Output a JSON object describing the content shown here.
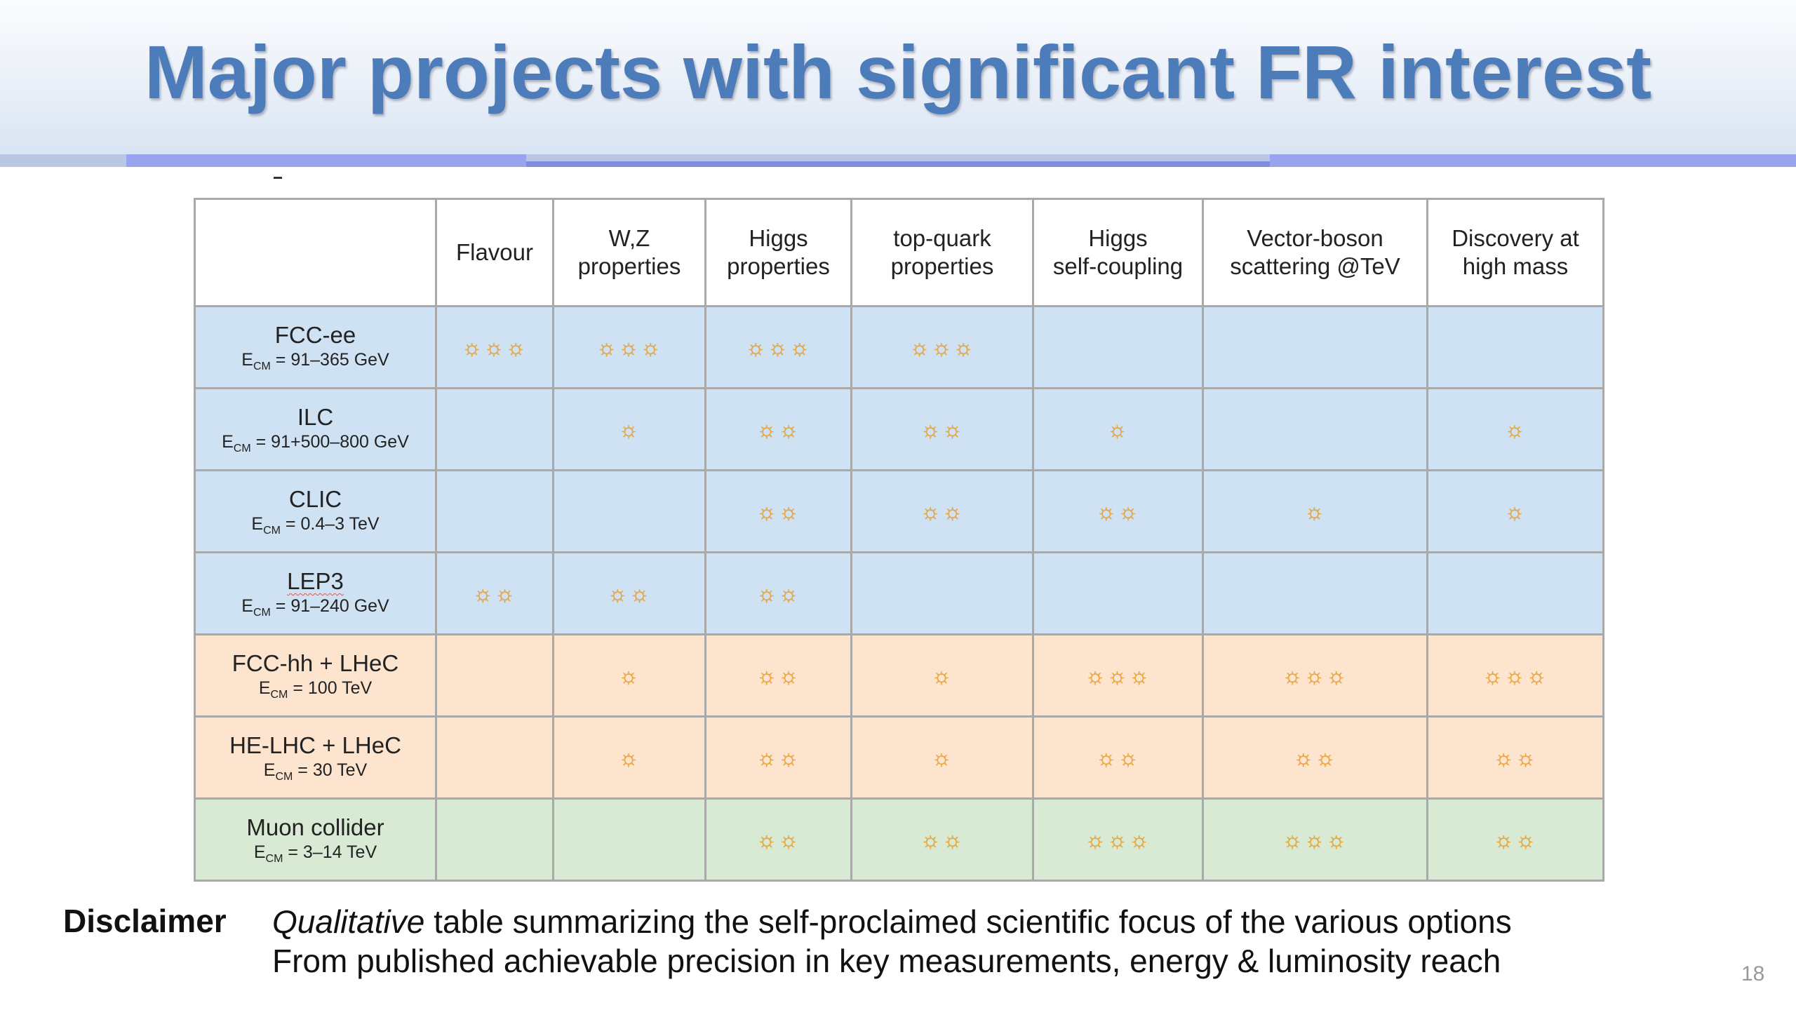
{
  "slide": {
    "title": "Major projects with significant FR interest",
    "page_number": "18"
  },
  "table": {
    "corner": "",
    "columns": [
      [
        "Flavour"
      ],
      [
        "W,Z",
        "properties"
      ],
      [
        "Higgs",
        "properties"
      ],
      [
        "top-quark",
        "properties"
      ],
      [
        "Higgs",
        "self-coupling"
      ],
      [
        "Vector-boson",
        "scattering @TeV"
      ],
      [
        "Discovery at",
        "high mass"
      ]
    ],
    "rows": [
      {
        "name": "FCC-ee",
        "energy_prefix": "E",
        "energy_sub": "CM",
        "energy_value": "= 91–365 GeV",
        "group": "blue",
        "cells": [
          "☼☼☼",
          "☼☼☼",
          "☼☼☼",
          "☼☼☼",
          "",
          "",
          ""
        ]
      },
      {
        "name": "ILC",
        "energy_prefix": "E",
        "energy_sub": "CM",
        "energy_value": "= 91+500–800 GeV",
        "group": "blue",
        "cells": [
          "",
          "☼",
          "☼☼",
          "☼☼",
          "☼",
          "",
          "☼"
        ]
      },
      {
        "name": "CLIC",
        "energy_prefix": "E",
        "energy_sub": "CM",
        "energy_value": "= 0.4–3 TeV",
        "group": "blue",
        "cells": [
          "",
          "",
          "☼☼",
          "☼☼",
          "☼☼",
          "☼",
          "☼"
        ]
      },
      {
        "name": "LEP3",
        "energy_prefix": "E",
        "energy_sub": "CM",
        "energy_value": "= 91–240 GeV",
        "group": "blue",
        "cells": [
          "☼☼",
          "☼☼",
          "☼☼",
          "",
          "",
          "",
          ""
        ]
      },
      {
        "name": "FCC-hh + LHeC",
        "energy_prefix": "E",
        "energy_sub": "CM",
        "energy_value": "= 100 TeV",
        "group": "orange",
        "cells": [
          "",
          "☼",
          "☼☼",
          "☼",
          "☼☼☼",
          "☼☼☼",
          "☼☼☼"
        ]
      },
      {
        "name": "HE-LHC + LHeC",
        "energy_prefix": "E",
        "energy_sub": "CM",
        "energy_value": "= 30 TeV",
        "group": "orange",
        "cells": [
          "",
          "☼",
          "☼☼",
          "☼",
          "☼☼",
          "☼☼",
          "☼☼"
        ]
      },
      {
        "name": "Muon collider",
        "energy_prefix": "E",
        "energy_sub": "CM",
        "energy_value": "= 3–14 TeV",
        "group": "green",
        "cells": [
          "",
          "",
          "☼☼",
          "☼☼",
          "☼☼☼",
          "☼☼☼",
          "☼☼"
        ]
      }
    ]
  },
  "disclaimer": {
    "label": "Disclaimer",
    "line1_italic": "Qualitative",
    "line1_rest": " table summarizing the self-proclaimed scientific focus of the various options",
    "line2": "From published achievable precision in key measurements, energy & luminosity reach"
  },
  "colors": {
    "title": "#4d7cba",
    "row_blue": "#cfe2f3",
    "row_orange": "#fce4cf",
    "row_green": "#d8ead3",
    "star": "#f2a52a"
  },
  "icons": {
    "star": "sun-icon"
  }
}
